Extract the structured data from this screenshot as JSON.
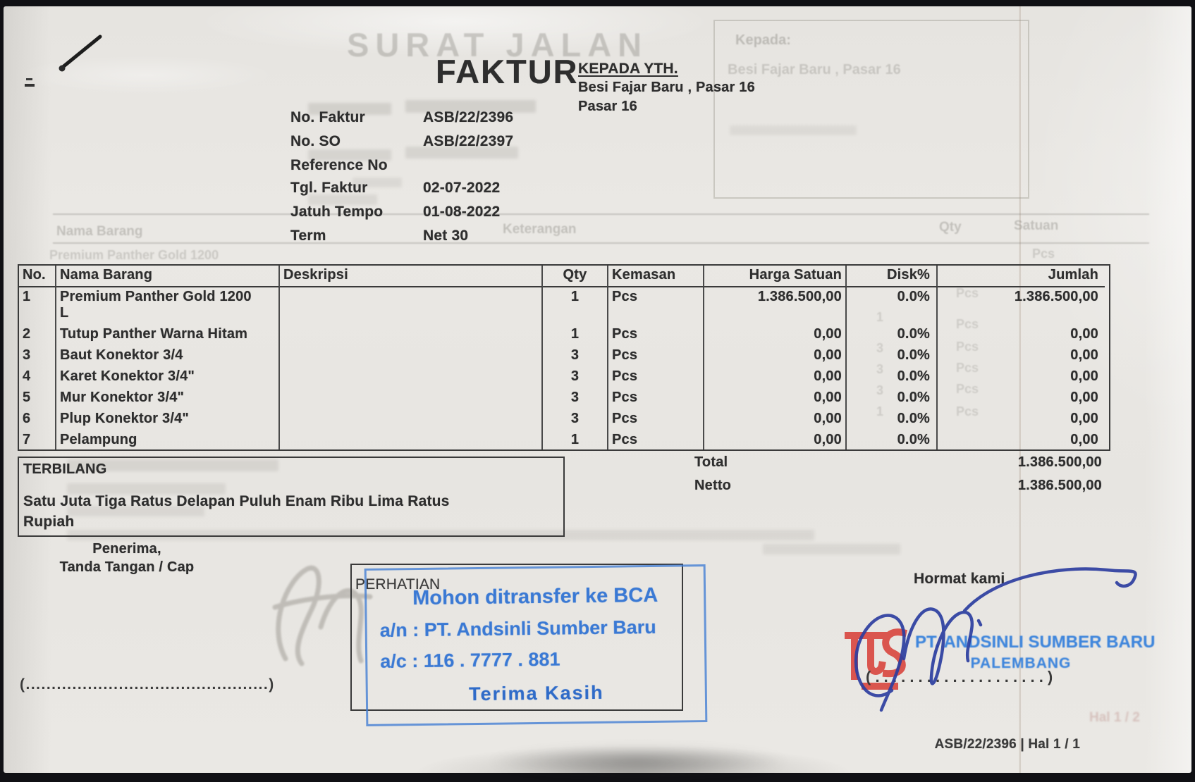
{
  "document": {
    "title": "FAKTUR",
    "recipient": {
      "label": "KEPADA YTH.",
      "line1": "Besi Fajar Baru , Pasar 16",
      "line2": "Pasar 16"
    },
    "meta": [
      {
        "label": "No. Faktur",
        "value": "ASB/22/2396"
      },
      {
        "label": "No. SO",
        "value": "ASB/22/2397"
      },
      {
        "label": "Reference No",
        "value": ""
      },
      {
        "label": "Tgl. Faktur",
        "value": "02-07-2022"
      },
      {
        "label": "Jatuh Tempo",
        "value": "01-08-2022"
      },
      {
        "label": "Term",
        "value": "Net 30"
      }
    ],
    "table": {
      "headers": [
        "No.",
        "Nama Barang",
        "Deskripsi",
        "Qty",
        "Kemasan",
        "Harga Satuan",
        "Disk%",
        "Jumlah"
      ],
      "rows": [
        {
          "no": "1",
          "nama": "Premium Panther Gold 1200",
          "nama2": "L",
          "deskripsi": "",
          "qty": "1",
          "kemasan": "Pcs",
          "harga": "1.386.500,00",
          "disk": "0.0%",
          "jumlah": "1.386.500,00"
        },
        {
          "no": "2",
          "nama": "Tutup Panther Warna Hitam",
          "nama2": "",
          "deskripsi": "",
          "qty": "1",
          "kemasan": "Pcs",
          "harga": "0,00",
          "disk": "0.0%",
          "jumlah": "0,00"
        },
        {
          "no": "3",
          "nama": "Baut Konektor 3/4",
          "nama2": "",
          "deskripsi": "",
          "qty": "3",
          "kemasan": "Pcs",
          "harga": "0,00",
          "disk": "0.0%",
          "jumlah": "0,00"
        },
        {
          "no": "4",
          "nama": "Karet Konektor 3/4\"",
          "nama2": "",
          "deskripsi": "",
          "qty": "3",
          "kemasan": "Pcs",
          "harga": "0,00",
          "disk": "0.0%",
          "jumlah": "0,00"
        },
        {
          "no": "5",
          "nama": "Mur Konektor 3/4\"",
          "nama2": "",
          "deskripsi": "",
          "qty": "3",
          "kemasan": "Pcs",
          "harga": "0,00",
          "disk": "0.0%",
          "jumlah": "0,00"
        },
        {
          "no": "6",
          "nama": "Plup Konektor 3/4\"",
          "nama2": "",
          "deskripsi": "",
          "qty": "3",
          "kemasan": "Pcs",
          "harga": "0,00",
          "disk": "0.0%",
          "jumlah": "0,00"
        },
        {
          "no": "7",
          "nama": "Pelampung",
          "nama2": "",
          "deskripsi": "",
          "qty": "1",
          "kemasan": "Pcs",
          "harga": "0,00",
          "disk": "0.0%",
          "jumlah": "0,00"
        }
      ]
    },
    "totals": [
      {
        "label": "Total",
        "value": "1.386.500,00"
      },
      {
        "label": "Netto",
        "value": "1.386.500,00"
      }
    ],
    "terbilang": {
      "label": "TERBILANG",
      "line1": "Satu Juta Tiga Ratus Delapan Puluh Enam Ribu Lima Ratus",
      "line2": "Rupiah"
    },
    "penerima": {
      "line1": "Penerima,",
      "line2": "Tanda Tangan / Cap",
      "dots": "(...............................................)"
    },
    "perhatian": {
      "label": "PERHATIAN",
      "stamp_line1": "Mohon ditransfer ke BCA",
      "stamp_line2": "a/n : PT. Andsinli Sumber Baru",
      "stamp_line3": "a/c : 116 . 7777 . 881",
      "stamp_line4": "Terima Kasih"
    },
    "hormat": {
      "label": "Hormat kami",
      "company_line1": "PT. ANDSINLI SUMBER BARU",
      "company_line2": "PALEMBANG",
      "dots": "( . . . . . . . . . . . . . . . . . . . . )"
    },
    "footer": "ASB/22/2396 | Hal 1 / 1",
    "ghost": {
      "title": "SURAT JALAN",
      "kepada_label": "Kepada:",
      "kepada_line": "Besi Fajar Baru , Pasar 16",
      "col_nama": "Nama Barang",
      "col_keterangan": "Keterangan",
      "col_qty": "Qty",
      "col_satuan": "Satuan",
      "row_item": "Premium Panther Gold 1200",
      "unit": "Pcs",
      "qtys": [
        "1",
        "3",
        "3",
        "3",
        "1"
      ],
      "page": "Hal 1 / 2"
    },
    "colors": {
      "stamp_blue": "#3a79d4",
      "logo_red": "#d8423a",
      "ink_blue": "#2c3ea0"
    }
  }
}
